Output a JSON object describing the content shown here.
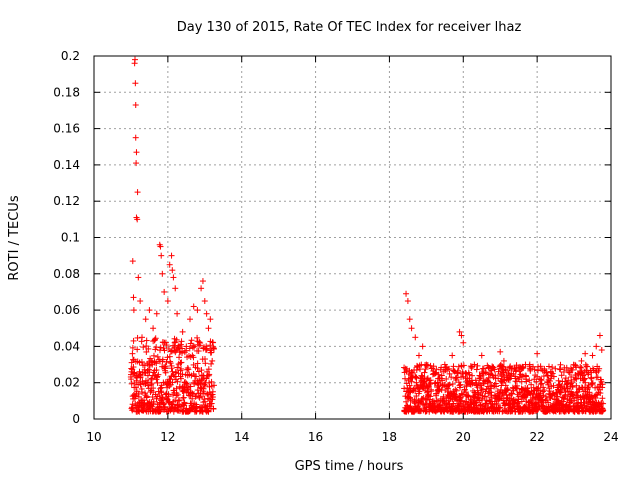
{
  "chart_data": {
    "type": "scatter",
    "title": "Day 130 of 2015, Rate Of TEC Index for receiver lhaz",
    "xlabel": "GPS time / hours",
    "ylabel": "ROTI / TECUs",
    "xlim": [
      10,
      24
    ],
    "ylim": [
      0,
      0.2
    ],
    "xticks": [
      10,
      12,
      14,
      16,
      18,
      20,
      22,
      24
    ],
    "yticks": [
      0,
      0.02,
      0.04,
      0.06,
      0.08,
      0.1,
      0.12,
      0.14,
      0.16,
      0.18,
      0.2
    ],
    "xtick_labels": [
      "10",
      "12",
      "14",
      "16",
      "18",
      "20",
      "22",
      "24"
    ],
    "ytick_labels": [
      "0",
      "0.02",
      "0.04",
      "0.06",
      "0.08",
      "0.1",
      "0.12",
      "0.14",
      "0.16",
      "0.18",
      "0.2"
    ],
    "grid": true,
    "marker": "+",
    "color": "#ff0000",
    "series": [
      {
        "name": "lhaz",
        "points": [
          [
            11.05,
            0.087
          ],
          [
            11.07,
            0.067
          ],
          [
            11.08,
            0.06
          ],
          [
            11.1,
            0.196
          ],
          [
            11.11,
            0.198
          ],
          [
            11.12,
            0.185
          ],
          [
            11.13,
            0.173
          ],
          [
            11.13,
            0.155
          ],
          [
            11.14,
            0.141
          ],
          [
            11.15,
            0.147
          ],
          [
            11.15,
            0.111
          ],
          [
            11.17,
            0.11
          ],
          [
            11.18,
            0.125
          ],
          [
            11.2,
            0.078
          ],
          [
            11.25,
            0.065
          ],
          [
            11.3,
            0.045
          ],
          [
            11.4,
            0.055
          ],
          [
            11.5,
            0.06
          ],
          [
            11.6,
            0.05
          ],
          [
            11.7,
            0.058
          ],
          [
            11.78,
            0.096
          ],
          [
            11.8,
            0.095
          ],
          [
            11.82,
            0.09
          ],
          [
            11.85,
            0.08
          ],
          [
            11.9,
            0.07
          ],
          [
            12.0,
            0.065
          ],
          [
            12.05,
            0.085
          ],
          [
            12.1,
            0.09
          ],
          [
            12.12,
            0.082
          ],
          [
            12.15,
            0.078
          ],
          [
            12.2,
            0.072
          ],
          [
            12.25,
            0.058
          ],
          [
            12.4,
            0.048
          ],
          [
            12.5,
            0.04
          ],
          [
            12.6,
            0.055
          ],
          [
            12.7,
            0.062
          ],
          [
            12.8,
            0.06
          ],
          [
            12.9,
            0.072
          ],
          [
            12.95,
            0.076
          ],
          [
            13.0,
            0.065
          ],
          [
            13.05,
            0.058
          ],
          [
            13.1,
            0.05
          ],
          [
            13.15,
            0.055
          ],
          [
            18.45,
            0.069
          ],
          [
            18.5,
            0.065
          ],
          [
            18.55,
            0.055
          ],
          [
            18.6,
            0.05
          ],
          [
            18.7,
            0.045
          ],
          [
            18.8,
            0.035
          ],
          [
            18.9,
            0.04
          ],
          [
            19.0,
            0.03
          ],
          [
            19.2,
            0.025
          ],
          [
            19.5,
            0.03
          ],
          [
            19.7,
            0.035
          ],
          [
            19.9,
            0.048
          ],
          [
            19.95,
            0.046
          ],
          [
            20.0,
            0.042
          ],
          [
            20.3,
            0.03
          ],
          [
            20.5,
            0.035
          ],
          [
            20.7,
            0.028
          ],
          [
            21.0,
            0.037
          ],
          [
            21.1,
            0.032
          ],
          [
            21.3,
            0.025
          ],
          [
            21.5,
            0.022
          ],
          [
            21.8,
            0.03
          ],
          [
            22.0,
            0.036
          ],
          [
            22.3,
            0.02
          ],
          [
            22.6,
            0.015
          ],
          [
            22.9,
            0.018
          ],
          [
            23.1,
            0.025
          ],
          [
            23.2,
            0.032
          ],
          [
            23.3,
            0.036
          ],
          [
            23.5,
            0.035
          ],
          [
            23.6,
            0.04
          ],
          [
            23.7,
            0.046
          ],
          [
            23.75,
            0.038
          ]
        ],
        "dense_bands": [
          {
            "x_range": [
              11.0,
              13.25
            ],
            "y_range": [
              0.004,
              0.045
            ]
          },
          {
            "x_range": [
              18.4,
              23.8
            ],
            "y_range": [
              0.004,
              0.03
            ]
          }
        ]
      }
    ]
  }
}
